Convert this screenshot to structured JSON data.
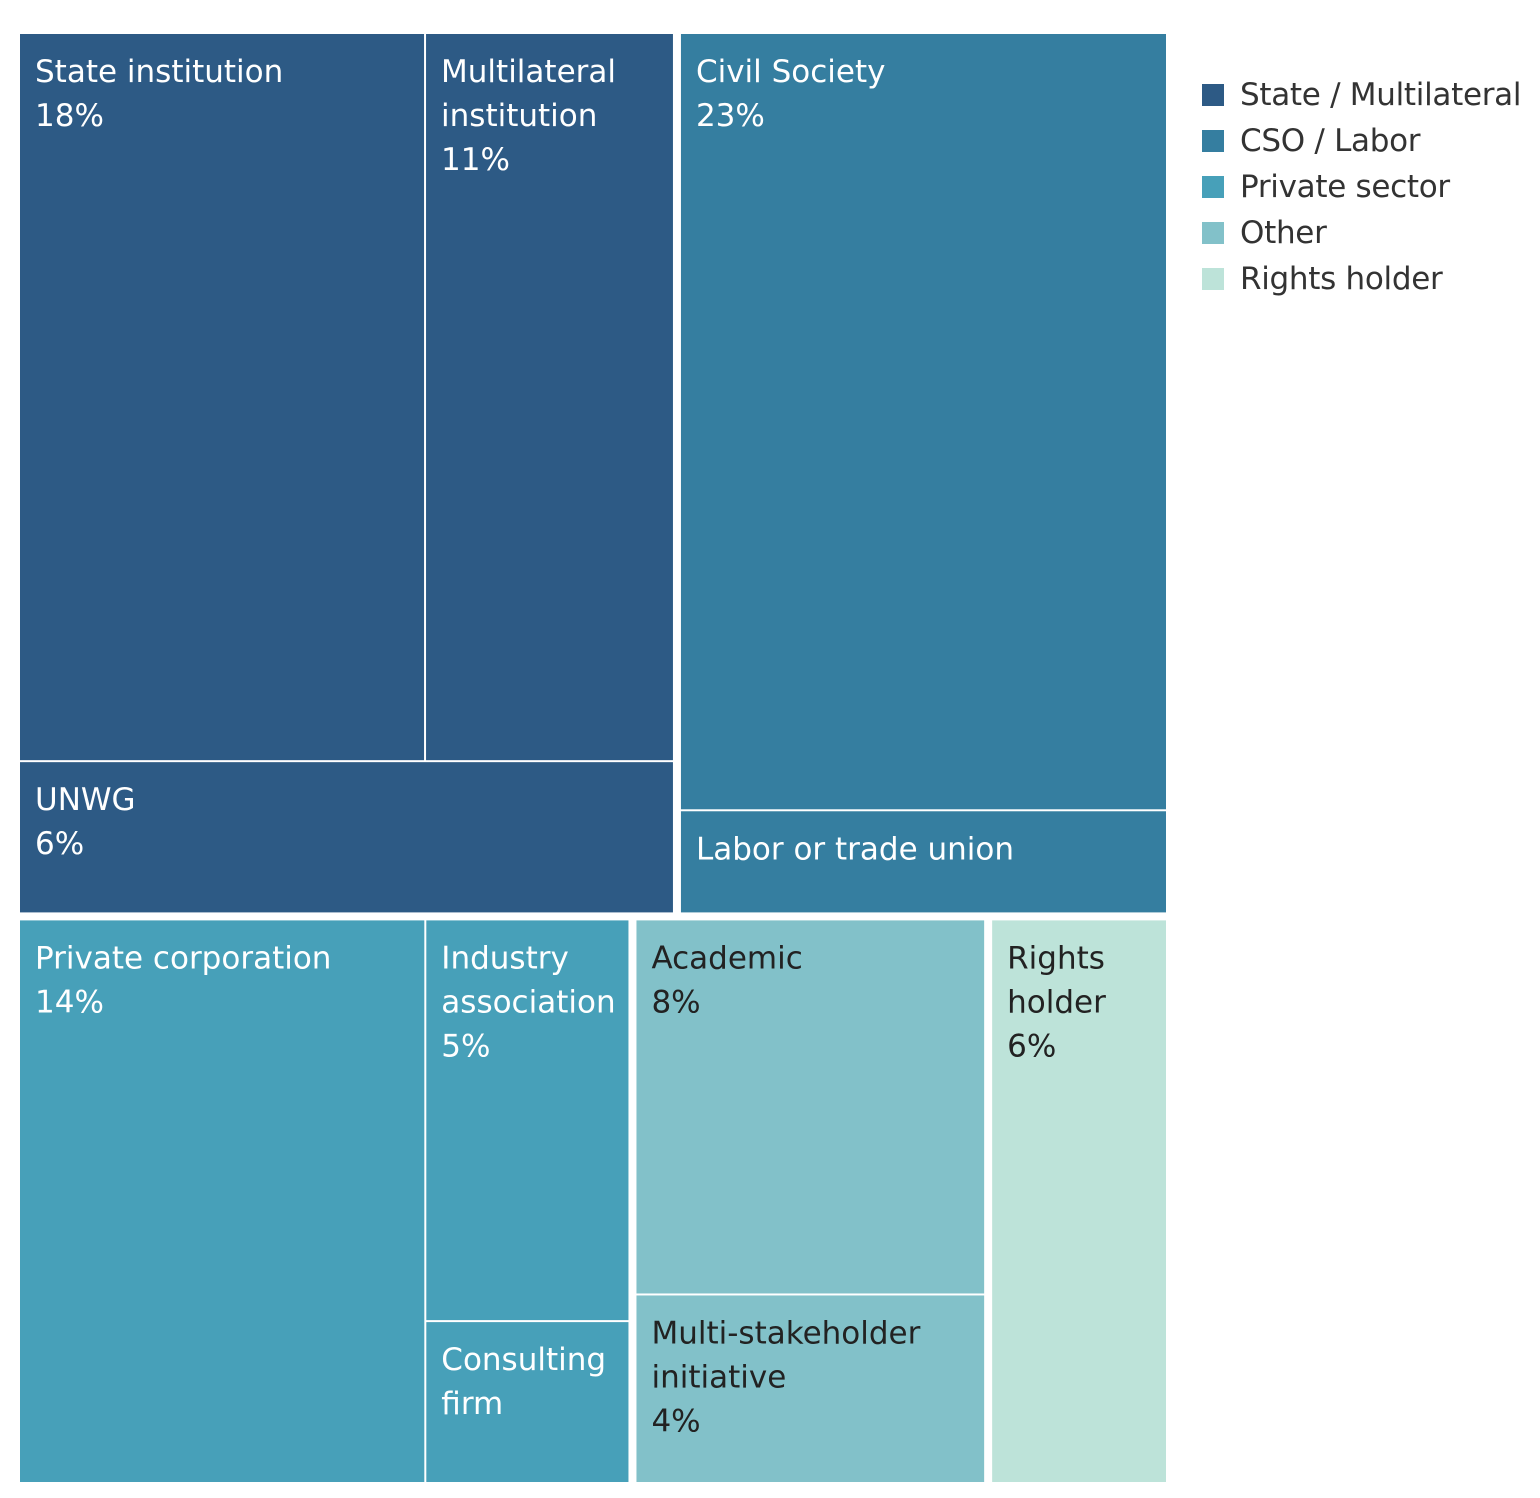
{
  "chart_data": {
    "type": "treemap",
    "title": "",
    "unit": "%",
    "groups": [
      {
        "name": "State / Multilateral",
        "color": "#2d5a85",
        "text_color": "#ffffff",
        "items": [
          {
            "name": "State institution",
            "value": 18,
            "label_lines": [
              "State institution"
            ],
            "value_label": "18%"
          },
          {
            "name": "Multilateral institution",
            "value": 11,
            "label_lines": [
              "Multilateral",
              "institution"
            ],
            "value_label": "11%"
          },
          {
            "name": "UNWG",
            "value": 6,
            "label_lines": [
              "UNWG"
            ],
            "value_label": "6%"
          }
        ]
      },
      {
        "name": "CSO / Labor",
        "color": "#357ea0",
        "text_color": "#ffffff",
        "items": [
          {
            "name": "Civil Society",
            "value": 23,
            "label_lines": [
              "Civil Society"
            ],
            "value_label": "23%"
          },
          {
            "name": "Labor or trade union",
            "value": 3,
            "label_lines": [
              "Labor or trade union"
            ],
            "value_label": null
          }
        ]
      },
      {
        "name": "Private sector",
        "color": "#47a0b9",
        "text_color": "#ffffff",
        "items": [
          {
            "name": "Private corporation",
            "value": 14,
            "label_lines": [
              "Private corporation"
            ],
            "value_label": "14%"
          },
          {
            "name": "Industry association",
            "value": 5,
            "label_lines": [
              "Industry",
              "association"
            ],
            "value_label": "5%"
          },
          {
            "name": "Consulting firm",
            "value": 2,
            "label_lines": [
              "Consulting",
              "firm"
            ],
            "value_label": null
          }
        ]
      },
      {
        "name": "Other",
        "color": "#82c1c9",
        "text_color": "#222222",
        "items": [
          {
            "name": "Academic",
            "value": 8,
            "label_lines": [
              "Academic"
            ],
            "value_label": "8%"
          },
          {
            "name": "Multi-stakeholder initiative",
            "value": 4,
            "label_lines": [
              "Multi-stakeholder",
              "initiative"
            ],
            "value_label": "4%"
          }
        ]
      },
      {
        "name": "Rights holder",
        "color": "#bde3d9",
        "text_color": "#222222",
        "items": [
          {
            "name": "Rights holder",
            "value": 6,
            "label_lines": [
              "Rights",
              "holder"
            ],
            "value_label": "6%"
          }
        ]
      }
    ],
    "legend": {
      "position": "top-right",
      "entries": [
        "State / Multilateral",
        "CSO / Labor",
        "Private sector",
        "Other",
        "Rights holder"
      ]
    }
  }
}
